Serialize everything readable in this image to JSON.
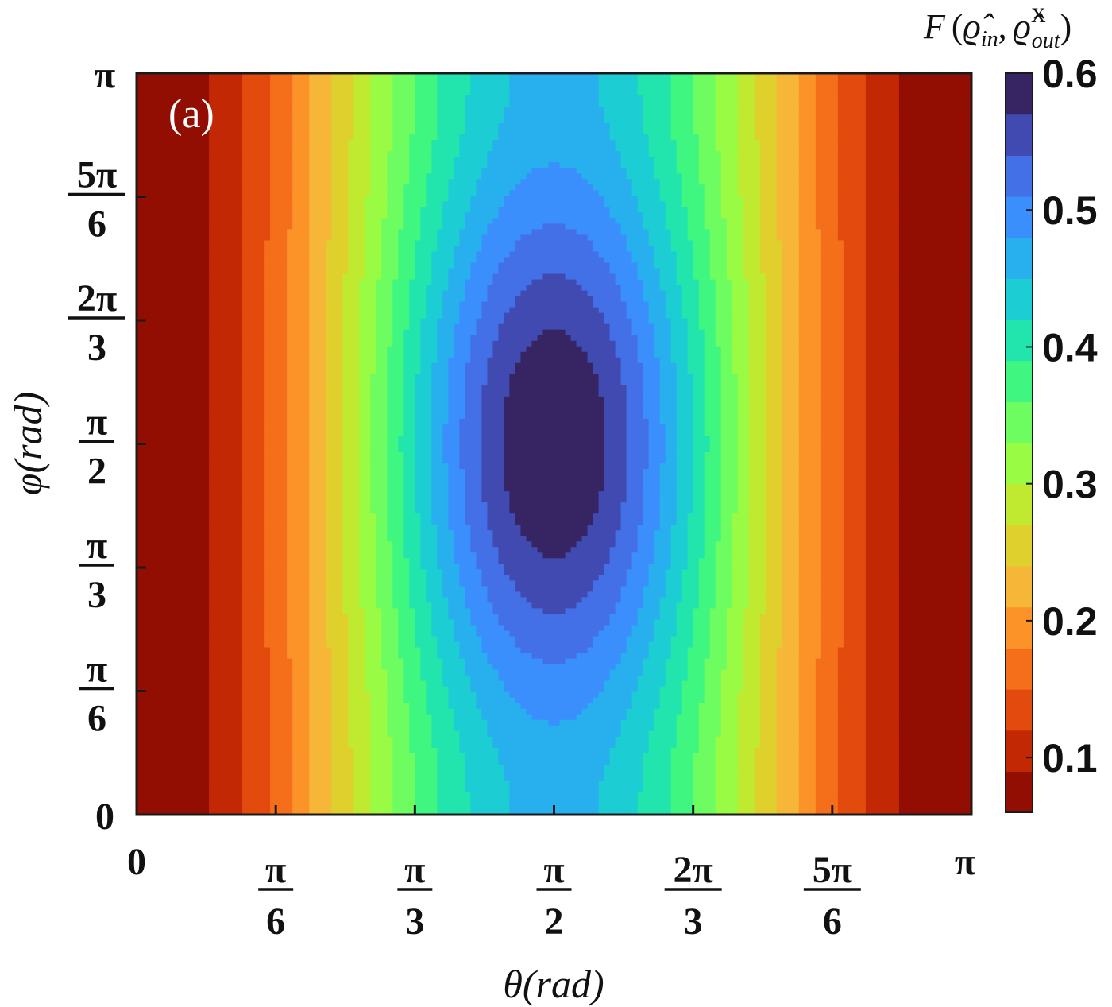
{
  "chart_data": {
    "type": "heatmap",
    "subtype": "filled-contour",
    "panel_label": "(a)",
    "xlabel": "θ(rad)",
    "ylabel": "φ(rad)",
    "colorbar_label": "F (ϱ̂in, ϱ̂outX)",
    "colorbar_parts": {
      "prefix": "F",
      "open": "(",
      "rho_in": "ϱ̂",
      "sub_in": "in",
      "comma": ",",
      "rho_out": "ϱ̂",
      "sup_out": "X",
      "sub_out": "out",
      "close": ")"
    },
    "xlim": [
      0,
      3.14159
    ],
    "ylim": [
      0,
      3.14159
    ],
    "x_ticks": [
      {
        "value": 0,
        "num": "0",
        "den": ""
      },
      {
        "value": 0.5236,
        "num": "π",
        "den": "6"
      },
      {
        "value": 1.0472,
        "num": "π",
        "den": "3"
      },
      {
        "value": 1.5708,
        "num": "π",
        "den": "2"
      },
      {
        "value": 2.0944,
        "num": "2π",
        "den": "3"
      },
      {
        "value": 2.618,
        "num": "5π",
        "den": "6"
      },
      {
        "value": 3.14159,
        "num": "π",
        "den": ""
      }
    ],
    "y_ticks": [
      {
        "value": 0,
        "num": "0",
        "den": ""
      },
      {
        "value": 0.5236,
        "num": "π",
        "den": "6"
      },
      {
        "value": 1.0472,
        "num": "π",
        "den": "3"
      },
      {
        "value": 1.5708,
        "num": "π",
        "den": "2"
      },
      {
        "value": 2.0944,
        "num": "2π",
        "den": "3"
      },
      {
        "value": 2.618,
        "num": "5π",
        "den": "6"
      },
      {
        "value": 3.14159,
        "num": "π",
        "den": ""
      }
    ],
    "colorbar": {
      "range": [
        0.06,
        0.6
      ],
      "ticks": [
        0.1,
        0.2,
        0.3,
        0.4,
        0.5,
        0.6
      ],
      "tick_labels": [
        "0.1",
        "0.2",
        "0.3",
        "0.4",
        "0.5",
        "0.6"
      ],
      "colormap": "turbo (reversed)"
    },
    "features": {
      "maximum": {
        "theta": 1.5708,
        "phi": 1.5708,
        "value": 0.6
      },
      "minimum": {
        "theta": [
          0,
          3.14159
        ],
        "phi": 1.5708,
        "value": 0.06
      },
      "saddle_bulges": [
        {
          "theta": 1.5708,
          "phi": 0,
          "value": 0.5
        },
        {
          "theta": 1.5708,
          "phi": 3.14159,
          "value": 0.5
        }
      ]
    },
    "contour_levels": 18
  }
}
